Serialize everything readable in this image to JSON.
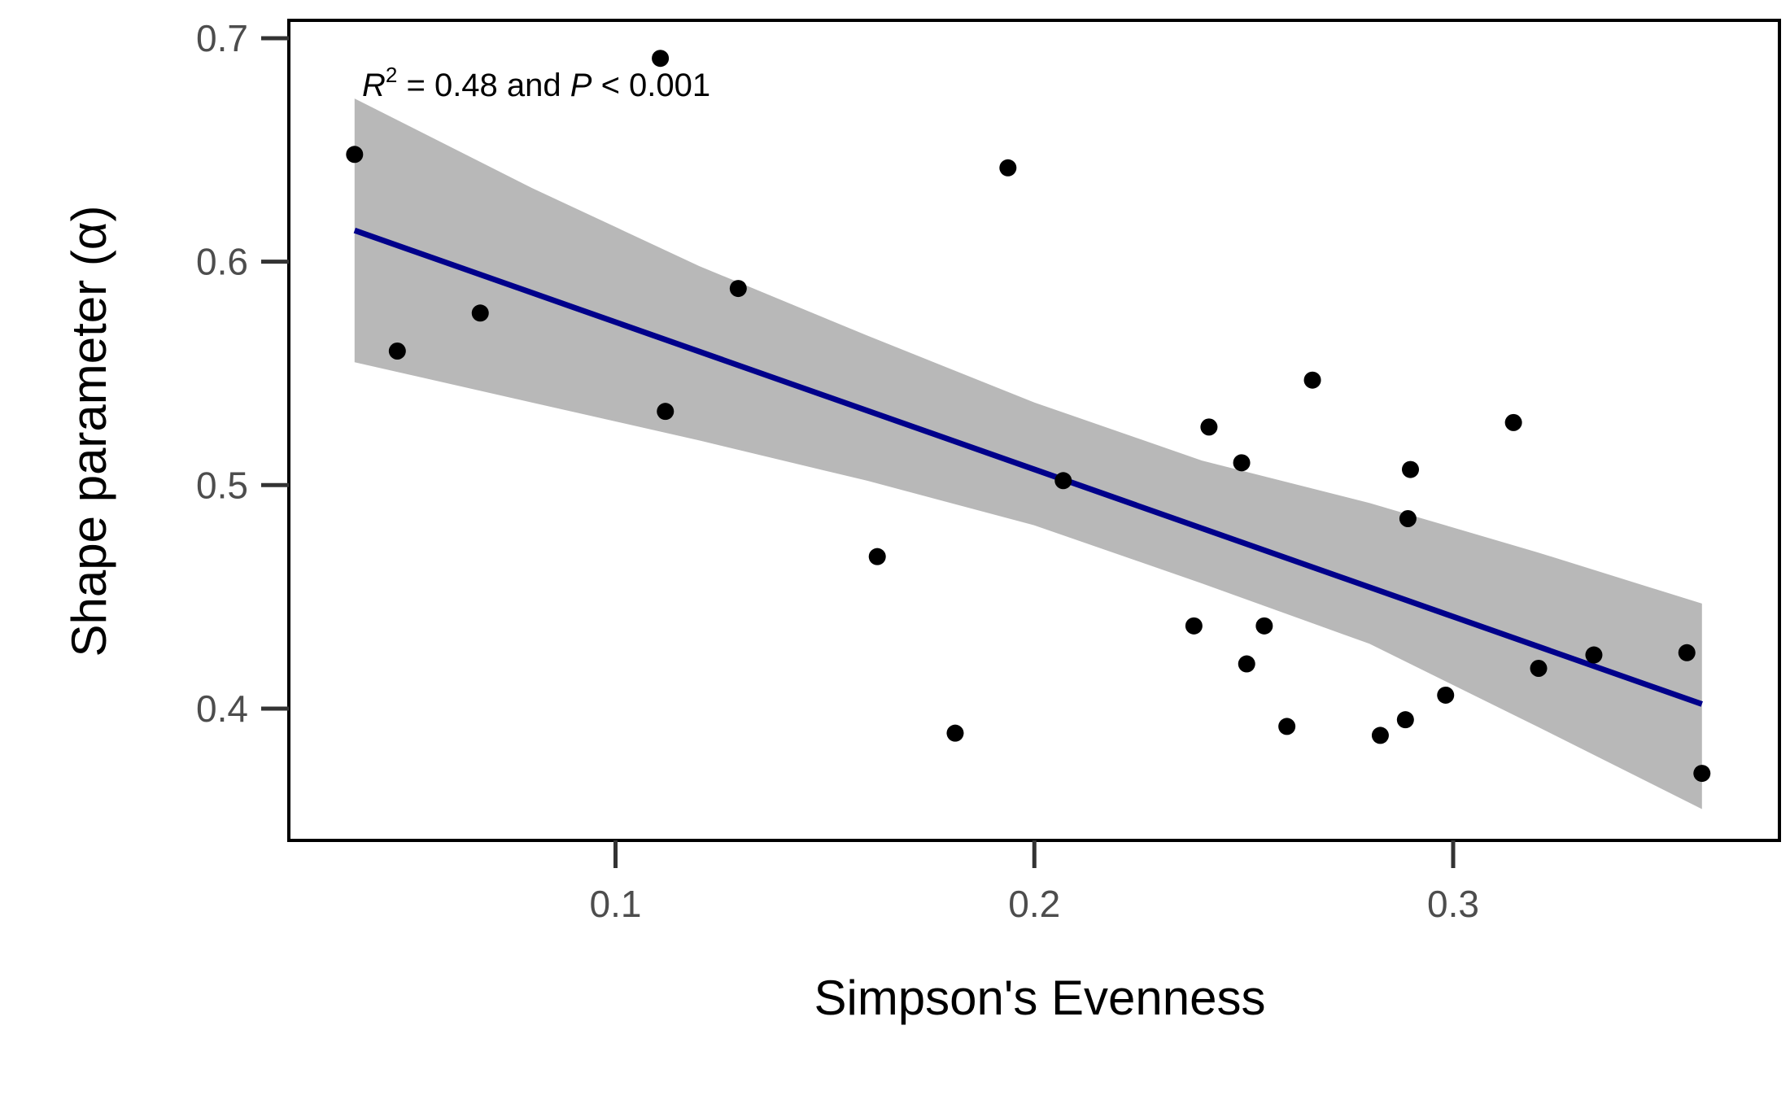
{
  "chart_data": {
    "type": "scatter",
    "xlabel": "Simpson's Evenness",
    "ylabel": "Shape parameter (α)",
    "xlim": [
      0.022,
      0.3779
    ],
    "ylim": [
      0.341,
      0.708
    ],
    "x_ticks": [
      0.1,
      0.2,
      0.3
    ],
    "x_tick_labels": [
      "0.1",
      "0.2",
      "0.3"
    ],
    "y_ticks": [
      0.4,
      0.5,
      0.6,
      0.7
    ],
    "y_tick_labels": [
      "0.4",
      "0.5",
      "0.6",
      "0.7"
    ],
    "grid": false,
    "annotation": {
      "r_symbol": "R",
      "r_exp": "2",
      "r_value": " = 0.48 and ",
      "p_symbol": "P",
      "p_value": " < 0.001"
    },
    "points": [
      {
        "x": 0.0377,
        "y": 0.648
      },
      {
        "x": 0.0479,
        "y": 0.56
      },
      {
        "x": 0.0677,
        "y": 0.577
      },
      {
        "x": 0.1107,
        "y": 0.691
      },
      {
        "x": 0.1119,
        "y": 0.533
      },
      {
        "x": 0.1293,
        "y": 0.588
      },
      {
        "x": 0.1625,
        "y": 0.468
      },
      {
        "x": 0.1811,
        "y": 0.389
      },
      {
        "x": 0.1937,
        "y": 0.642
      },
      {
        "x": 0.2069,
        "y": 0.502
      },
      {
        "x": 0.2381,
        "y": 0.437
      },
      {
        "x": 0.2417,
        "y": 0.526
      },
      {
        "x": 0.2495,
        "y": 0.51
      },
      {
        "x": 0.2507,
        "y": 0.42
      },
      {
        "x": 0.2549,
        "y": 0.437
      },
      {
        "x": 0.2603,
        "y": 0.392
      },
      {
        "x": 0.2664,
        "y": 0.547
      },
      {
        "x": 0.2826,
        "y": 0.388
      },
      {
        "x": 0.2886,
        "y": 0.395
      },
      {
        "x": 0.2892,
        "y": 0.485
      },
      {
        "x": 0.2898,
        "y": 0.507
      },
      {
        "x": 0.2982,
        "y": 0.406
      },
      {
        "x": 0.3144,
        "y": 0.528
      },
      {
        "x": 0.3204,
        "y": 0.418
      },
      {
        "x": 0.3336,
        "y": 0.424
      },
      {
        "x": 0.3558,
        "y": 0.425
      },
      {
        "x": 0.3594,
        "y": 0.371
      }
    ],
    "fit_line": {
      "x": [
        0.0377,
        0.3594
      ],
      "y": [
        0.614,
        0.402
      ],
      "color": "#00008B"
    },
    "confidence_band": {
      "x": [
        0.0377,
        0.08,
        0.12,
        0.16,
        0.2,
        0.24,
        0.28,
        0.32,
        0.3594
      ],
      "upper": [
        0.673,
        0.633,
        0.598,
        0.567,
        0.537,
        0.511,
        0.492,
        0.47,
        0.447
      ],
      "lower": [
        0.555,
        0.537,
        0.52,
        0.502,
        0.482,
        0.456,
        0.429,
        0.392,
        0.355
      ],
      "color": "#B8B8B8"
    },
    "point_color": "#000000"
  }
}
